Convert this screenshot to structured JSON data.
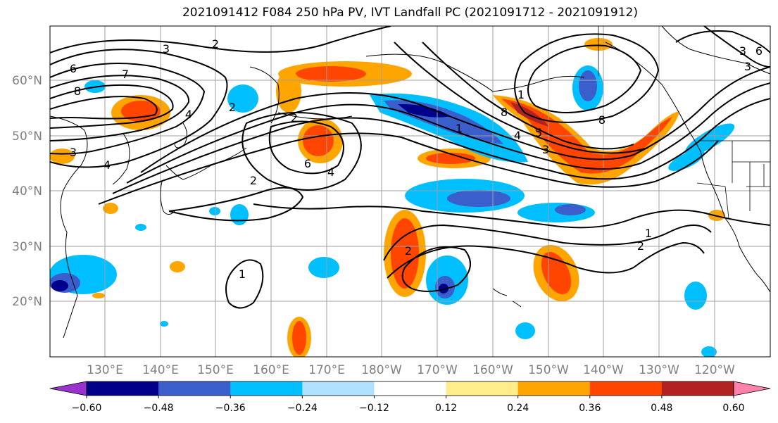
{
  "title": "2021091412 F084 250 hPa PV, IVT Landfall PC (2021091712 - 2021091912)",
  "map": {
    "lon_labels": [
      "130°E",
      "140°E",
      "150°E",
      "160°E",
      "170°E",
      "180°W",
      "170°W",
      "160°W",
      "150°W",
      "140°W",
      "130°W",
      "120°W"
    ],
    "lat_labels": [
      "60°N",
      "50°N",
      "40°N",
      "30°N",
      "20°N"
    ],
    "contour_labels": [
      "3",
      "2",
      "6",
      "7",
      "8",
      "2",
      "4",
      "2",
      "6",
      "4",
      "3",
      "4",
      "2",
      "2",
      "1",
      "1",
      "8",
      "4",
      "5",
      "3",
      "8",
      "2",
      "1",
      "1",
      "3",
      "3",
      "6"
    ]
  },
  "colorbar": {
    "colors": [
      "#9932cc",
      "#00008b",
      "#3a5fcd",
      "#00bfff",
      "#b0e2ff",
      "#ffffff",
      "#ffec8b",
      "#ffa500",
      "#ff4500",
      "#b22222",
      "#ff82ab"
    ],
    "tick_labels": [
      "−0.60",
      "−0.48",
      "−0.36",
      "−0.24",
      "−0.12",
      "0.12",
      "0.24",
      "0.36",
      "0.48",
      "0.60"
    ]
  }
}
